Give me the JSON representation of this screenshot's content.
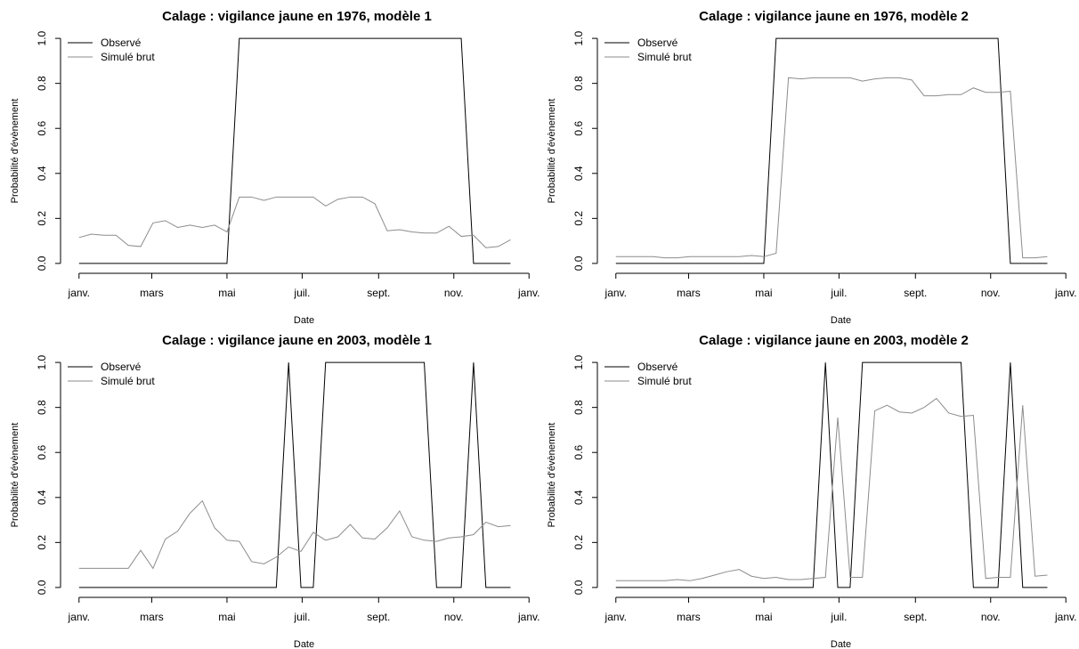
{
  "chart_data": [
    {
      "type": "line",
      "title": "Calage : vigilance jaune en 1976, modèle 1",
      "x_label": "Date",
      "y_label": "Probabilité d'évènement",
      "x": [
        0,
        10,
        20,
        30,
        40,
        50,
        60,
        70,
        80,
        90,
        100,
        110,
        120,
        130,
        140,
        150,
        160,
        170,
        180,
        190,
        200,
        210,
        220,
        230,
        240,
        250,
        260,
        270,
        280,
        290,
        300,
        310,
        320,
        330,
        340,
        350
      ],
      "series": [
        {
          "name": "Observé",
          "color": "#000000",
          "values": [
            0,
            0,
            0,
            0,
            0,
            0,
            0,
            0,
            0,
            0,
            0,
            0,
            0,
            1,
            1,
            1,
            1,
            1,
            1,
            1,
            1,
            1,
            1,
            1,
            1,
            1,
            1,
            1,
            1,
            1,
            1,
            1,
            0,
            0,
            0,
            0
          ]
        },
        {
          "name": "Simulé brut",
          "color": "#8c8c8c",
          "values": [
            0.115,
            0.13,
            0.125,
            0.125,
            0.08,
            0.075,
            0.18,
            0.19,
            0.16,
            0.17,
            0.16,
            0.17,
            0.14,
            0.295,
            0.295,
            0.28,
            0.295,
            0.295,
            0.295,
            0.295,
            0.255,
            0.285,
            0.295,
            0.295,
            0.265,
            0.145,
            0.15,
            0.14,
            0.135,
            0.135,
            0.165,
            0.12,
            0.125,
            0.07,
            0.075,
            0.105
          ]
        }
      ],
      "xlim": [
        -15,
        380
      ],
      "xticks": [
        {
          "value": 0,
          "label": "janv."
        },
        {
          "value": 59,
          "label": "mars"
        },
        {
          "value": 120,
          "label": "mai"
        },
        {
          "value": 181,
          "label": "juil."
        },
        {
          "value": 243,
          "label": "sept."
        },
        {
          "value": 304,
          "label": "nov."
        },
        {
          "value": 365,
          "label": "janv."
        }
      ],
      "ylim": [
        -0.04,
        1.04
      ],
      "yticks": [
        {
          "value": 0,
          "label": "0.0"
        },
        0.2,
        0.4,
        0.6,
        0.8,
        {
          "value": 1,
          "label": "1.0"
        }
      ],
      "legend": "top-left"
    },
    {
      "type": "line",
      "title": "Calage : vigilance jaune en 1976, modèle 2",
      "x_label": "Date",
      "y_label": "Probabilité d'évènement",
      "x": [
        0,
        10,
        20,
        30,
        40,
        50,
        60,
        70,
        80,
        90,
        100,
        110,
        120,
        130,
        140,
        150,
        160,
        170,
        180,
        190,
        200,
        210,
        220,
        230,
        240,
        250,
        260,
        270,
        280,
        290,
        300,
        310,
        320,
        330,
        340,
        350
      ],
      "series": [
        {
          "name": "Observé",
          "color": "#000000",
          "values": [
            0,
            0,
            0,
            0,
            0,
            0,
            0,
            0,
            0,
            0,
            0,
            0,
            0,
            1,
            1,
            1,
            1,
            1,
            1,
            1,
            1,
            1,
            1,
            1,
            1,
            1,
            1,
            1,
            1,
            1,
            1,
            1,
            0,
            0,
            0,
            0
          ]
        },
        {
          "name": "Simulé brut",
          "color": "#8c8c8c",
          "values": [
            0.03,
            0.03,
            0.03,
            0.03,
            0.025,
            0.025,
            0.03,
            0.03,
            0.03,
            0.03,
            0.03,
            0.035,
            0.03,
            0.045,
            0.825,
            0.82,
            0.825,
            0.825,
            0.825,
            0.825,
            0.81,
            0.82,
            0.825,
            0.825,
            0.815,
            0.745,
            0.745,
            0.75,
            0.75,
            0.78,
            0.76,
            0.76,
            0.765,
            0.025,
            0.025,
            0.03
          ]
        }
      ],
      "xlim": [
        -15,
        380
      ],
      "xticks": [
        {
          "value": 0,
          "label": "janv."
        },
        {
          "value": 59,
          "label": "mars"
        },
        {
          "value": 120,
          "label": "mai"
        },
        {
          "value": 181,
          "label": "juil."
        },
        {
          "value": 243,
          "label": "sept."
        },
        {
          "value": 304,
          "label": "nov."
        },
        {
          "value": 365,
          "label": "janv."
        }
      ],
      "ylim": [
        -0.04,
        1.04
      ],
      "yticks": [
        {
          "value": 0,
          "label": "0.0"
        },
        0.2,
        0.4,
        0.6,
        0.8,
        {
          "value": 1,
          "label": "1.0"
        }
      ],
      "legend": "top-left"
    },
    {
      "type": "line",
      "title": "Calage : vigilance jaune en 2003, modèle 1",
      "x_label": "Date",
      "y_label": "Probabilité d'évènement",
      "x": [
        0,
        10,
        20,
        30,
        40,
        50,
        60,
        70,
        80,
        90,
        100,
        110,
        120,
        130,
        140,
        150,
        160,
        170,
        180,
        190,
        200,
        210,
        220,
        230,
        240,
        250,
        260,
        270,
        280,
        290,
        300,
        310,
        320,
        330,
        340,
        350
      ],
      "series": [
        {
          "name": "Observé",
          "color": "#000000",
          "values": [
            0,
            0,
            0,
            0,
            0,
            0,
            0,
            0,
            0,
            0,
            0,
            0,
            0,
            0,
            0,
            0,
            0,
            1,
            0,
            0,
            1,
            1,
            1,
            1,
            1,
            1,
            1,
            1,
            1,
            0,
            0,
            0,
            1,
            0,
            0,
            0
          ]
        },
        {
          "name": "Simulé brut",
          "color": "#8c8c8c",
          "values": [
            0.085,
            0.085,
            0.085,
            0.085,
            0.085,
            0.165,
            0.085,
            0.215,
            0.25,
            0.33,
            0.385,
            0.265,
            0.21,
            0.205,
            0.115,
            0.105,
            0.135,
            0.18,
            0.16,
            0.245,
            0.21,
            0.225,
            0.28,
            0.22,
            0.215,
            0.265,
            0.34,
            0.225,
            0.21,
            0.205,
            0.22,
            0.225,
            0.235,
            0.29,
            0.27,
            0.275
          ]
        }
      ],
      "xlim": [
        -15,
        380
      ],
      "xticks": [
        {
          "value": 0,
          "label": "janv."
        },
        {
          "value": 59,
          "label": "mars"
        },
        {
          "value": 120,
          "label": "mai"
        },
        {
          "value": 181,
          "label": "juil."
        },
        {
          "value": 243,
          "label": "sept."
        },
        {
          "value": 304,
          "label": "nov."
        },
        {
          "value": 365,
          "label": "janv."
        }
      ],
      "ylim": [
        -0.04,
        1.04
      ],
      "yticks": [
        {
          "value": 0,
          "label": "0.0"
        },
        0.2,
        0.4,
        0.6,
        0.8,
        {
          "value": 1,
          "label": "1.0"
        }
      ],
      "legend": "top-left"
    },
    {
      "type": "line",
      "title": "Calage : vigilance jaune en 2003, modèle 2",
      "x_label": "Date",
      "y_label": "Probabilité d'évènement",
      "x": [
        0,
        10,
        20,
        30,
        40,
        50,
        60,
        70,
        80,
        90,
        100,
        110,
        120,
        130,
        140,
        150,
        160,
        170,
        180,
        190,
        200,
        210,
        220,
        230,
        240,
        250,
        260,
        270,
        280,
        290,
        300,
        310,
        320,
        330,
        340,
        350
      ],
      "series": [
        {
          "name": "Observé",
          "color": "#000000",
          "values": [
            0,
            0,
            0,
            0,
            0,
            0,
            0,
            0,
            0,
            0,
            0,
            0,
            0,
            0,
            0,
            0,
            0,
            1,
            0,
            0,
            1,
            1,
            1,
            1,
            1,
            1,
            1,
            1,
            1,
            0,
            0,
            0,
            1,
            0,
            0,
            0
          ]
        },
        {
          "name": "Simulé brut",
          "color": "#8c8c8c",
          "values": [
            0.03,
            0.03,
            0.03,
            0.03,
            0.03,
            0.035,
            0.03,
            0.04,
            0.055,
            0.07,
            0.08,
            0.05,
            0.04,
            0.045,
            0.035,
            0.035,
            0.04,
            0.045,
            0.755,
            0.045,
            0.045,
            0.785,
            0.81,
            0.78,
            0.775,
            0.8,
            0.84,
            0.775,
            0.76,
            0.765,
            0.04,
            0.045,
            0.045,
            0.81,
            0.05,
            0.055
          ]
        }
      ],
      "xlim": [
        -15,
        380
      ],
      "xticks": [
        {
          "value": 0,
          "label": "janv."
        },
        {
          "value": 59,
          "label": "mars"
        },
        {
          "value": 120,
          "label": "mai"
        },
        {
          "value": 181,
          "label": "juil."
        },
        {
          "value": 243,
          "label": "sept."
        },
        {
          "value": 304,
          "label": "nov."
        },
        {
          "value": 365,
          "label": "janv."
        }
      ],
      "ylim": [
        -0.04,
        1.04
      ],
      "yticks": [
        {
          "value": 0,
          "label": "0.0"
        },
        0.2,
        0.4,
        0.6,
        0.8,
        {
          "value": 1,
          "label": "1.0"
        }
      ],
      "legend": "top-left"
    }
  ]
}
